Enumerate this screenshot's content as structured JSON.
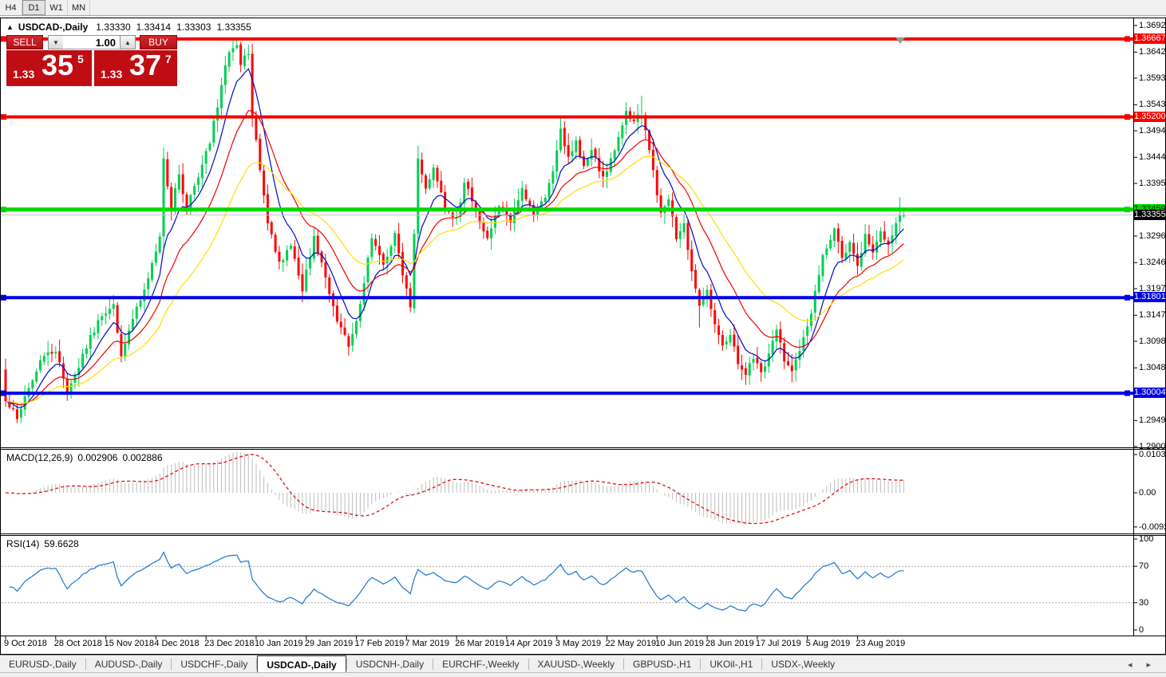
{
  "toolbar": {
    "timeframes": [
      {
        "label": "H4",
        "active": false
      },
      {
        "label": "D1",
        "active": true
      },
      {
        "label": "W1",
        "active": false
      },
      {
        "label": "MN",
        "active": false
      }
    ]
  },
  "chart": {
    "collapse_marker": "▲",
    "title": "USDCAD-,Daily",
    "ohlc": {
      "open": "1.33330",
      "high": "1.33414",
      "low": "1.33303",
      "close": "1.33355"
    },
    "trade_panel": {
      "sell_label": "SELL",
      "buy_label": "BUY",
      "volume": "1.00",
      "down_arrow": "▼",
      "up_arrow": "▲",
      "sell_price": {
        "prefix": "1.33",
        "big": "35",
        "sup": "5"
      },
      "buy_price": {
        "prefix": "1.33",
        "big": "37",
        "sup": "7"
      }
    }
  },
  "macd_panel": {
    "label": "MACD(12,26,9)",
    "value_main": "0.002906",
    "value_signal": "0.002886",
    "axis": [
      {
        "text": "0.010311",
        "value": 0.010311
      },
      {
        "text": "0.00",
        "value": 0
      },
      {
        "text": "-0.009203",
        "value": -0.009203
      }
    ]
  },
  "rsi_panel": {
    "label": "RSI(14)",
    "value": "59.6628",
    "axis": [
      {
        "text": "100",
        "value": 100
      },
      {
        "text": "70",
        "value": 70
      },
      {
        "text": "30",
        "value": 30
      },
      {
        "text": "0",
        "value": 0
      }
    ]
  },
  "price_axis": {
    "ticks": [
      {
        "text": "1.36920",
        "value": 1.3692
      },
      {
        "text": "1.36420",
        "value": 1.3642
      },
      {
        "text": "1.35930",
        "value": 1.3593
      },
      {
        "text": "1.35430",
        "value": 1.3543
      },
      {
        "text": "1.34940",
        "value": 1.3494
      },
      {
        "text": "1.34440",
        "value": 1.3444
      },
      {
        "text": "1.33950",
        "value": 1.3395
      },
      {
        "text": "1.32960",
        "value": 1.3296
      },
      {
        "text": "1.32460",
        "value": 1.3246
      },
      {
        "text": "1.31970",
        "value": 1.3197
      },
      {
        "text": "1.31470",
        "value": 1.3147
      },
      {
        "text": "1.30980",
        "value": 1.3098
      },
      {
        "text": "1.30480",
        "value": 1.3048
      },
      {
        "text": "1.29490",
        "value": 1.2949
      },
      {
        "text": "1.29000",
        "value": 1.29
      }
    ],
    "badges": [
      {
        "text": "1.36667",
        "value": 1.36667,
        "bg": "#ff0000",
        "fg": "#ffffff"
      },
      {
        "text": "1.35200",
        "value": 1.352,
        "bg": "#ff0000",
        "fg": "#ffffff"
      },
      {
        "text": "1.33459",
        "value": 1.33459,
        "bg": "#00d600",
        "fg": "#102800"
      },
      {
        "text": "1.33355",
        "value": 1.33355,
        "bg": "#000000",
        "fg": "#ffffff"
      },
      {
        "text": "1.31801",
        "value": 1.31801,
        "bg": "#0000e6",
        "fg": "#ffffff"
      },
      {
        "text": "1.30004",
        "value": 1.30004,
        "bg": "#0000e6",
        "fg": "#ffffff"
      }
    ]
  },
  "date_axis": {
    "labels": [
      "9 Oct 2018",
      "28 Oct 2018",
      "15 Nov 2018",
      "4 Dec 2018",
      "23 Dec 2018",
      "10 Jan 2019",
      "29 Jan 2019",
      "17 Feb 2019",
      "7 Mar 2019",
      "26 Mar 2019",
      "14 Apr 2019",
      "3 May 2019",
      "22 May 2019",
      "10 Jun 2019",
      "28 Jun 2019",
      "17 Jul 2019",
      "5 Aug 2019",
      "23 Aug 2019"
    ]
  },
  "tabs": {
    "items": [
      {
        "label": "EURUSD-,Daily",
        "active": false
      },
      {
        "label": "AUDUSD-,Daily",
        "active": false
      },
      {
        "label": "USDCHF-,Daily",
        "active": false
      },
      {
        "label": "USDCAD-,Daily",
        "active": true
      },
      {
        "label": "USDCNH-,Daily",
        "active": false
      },
      {
        "label": "EURCHF-,Weekly",
        "active": false
      },
      {
        "label": "XAUUSD-,Weekly",
        "active": false
      },
      {
        "label": "GBPUSD-,H1",
        "active": false
      },
      {
        "label": "UKOil-,H1",
        "active": false
      },
      {
        "label": "USDX-,Weekly",
        "active": false
      }
    ],
    "scroll_left": "◂",
    "scroll_right": "▸"
  },
  "chart_data": {
    "type": "candlestick",
    "symbol": "USDCAD",
    "timeframe": "Daily",
    "last_candle": {
      "open": 1.3333,
      "high": 1.33414,
      "low": 1.33303,
      "close": 1.33355
    },
    "price_axis_top": 1.3692,
    "price_axis_bottom": 1.29,
    "levels": [
      {
        "price": 1.36667,
        "color": "#f40000",
        "width": 4,
        "current": false
      },
      {
        "price": 1.352,
        "color": "#f40000",
        "width": 4,
        "current": false
      },
      {
        "price": 1.33459,
        "color": "#00d800",
        "width": 5,
        "current": false
      },
      {
        "price": 1.33355,
        "color": "#c4c4c4",
        "width": 1,
        "current": true
      },
      {
        "price": 1.31801,
        "color": "#0000e6",
        "width": 4,
        "current": false
      },
      {
        "price": 1.30004,
        "color": "#0000e6",
        "width": 4,
        "current": false
      }
    ],
    "candles": {
      "count": 234,
      "up_color": "#00cf52",
      "down_color": "#fd0505",
      "anchors": [
        [
          0,
          1.2985
        ],
        [
          3,
          1.2952
        ],
        [
          6,
          1.301
        ],
        [
          9,
          1.3062
        ],
        [
          13,
          1.3078
        ],
        [
          16,
          1.2998
        ],
        [
          19,
          1.3048
        ],
        [
          22,
          1.311
        ],
        [
          25,
          1.3145
        ],
        [
          28,
          1.3168
        ],
        [
          30,
          1.307
        ],
        [
          32,
          1.3118
        ],
        [
          35,
          1.3175
        ],
        [
          38,
          1.3245
        ],
        [
          40,
          1.3295
        ],
        [
          41,
          1.3442
        ],
        [
          43,
          1.3345
        ],
        [
          45,
          1.3412
        ],
        [
          47,
          1.3342
        ],
        [
          49,
          1.339
        ],
        [
          51,
          1.343
        ],
        [
          53,
          1.347
        ],
        [
          56,
          1.358
        ],
        [
          58,
          1.3642
        ],
        [
          60,
          1.3655
        ],
        [
          61,
          1.3618
        ],
        [
          63,
          1.3638
        ],
        [
          64,
          1.352
        ],
        [
          66,
          1.342
        ],
        [
          68,
          1.332
        ],
        [
          71,
          1.3248
        ],
        [
          74,
          1.3278
        ],
        [
          77,
          1.3192
        ],
        [
          80,
          1.3296
        ],
        [
          83,
          1.3218
        ],
        [
          86,
          1.3135
        ],
        [
          89,
          1.3088
        ],
        [
          92,
          1.3168
        ],
        [
          95,
          1.3292
        ],
        [
          98,
          1.3242
        ],
        [
          101,
          1.3302
        ],
        [
          103,
          1.3222
        ],
        [
          105,
          1.3162
        ],
        [
          106,
          1.33
        ],
        [
          107,
          1.3442
        ],
        [
          109,
          1.3385
        ],
        [
          111,
          1.3425
        ],
        [
          114,
          1.3348
        ],
        [
          117,
          1.3332
        ],
        [
          119,
          1.3396
        ],
        [
          122,
          1.3342
        ],
        [
          125,
          1.3292
        ],
        [
          128,
          1.3352
        ],
        [
          131,
          1.3322
        ],
        [
          134,
          1.3386
        ],
        [
          137,
          1.3336
        ],
        [
          140,
          1.3368
        ],
        [
          142,
          1.3418
        ],
        [
          144,
          1.3498
        ],
        [
          146,
          1.3445
        ],
        [
          148,
          1.3476
        ],
        [
          150,
          1.3428
        ],
        [
          152,
          1.3458
        ],
        [
          155,
          1.3408
        ],
        [
          157,
          1.3442
        ],
        [
          159,
          1.3482
        ],
        [
          161,
          1.3532
        ],
        [
          163,
          1.3512
        ],
        [
          165,
          1.3522
        ],
        [
          166,
          1.3495
        ],
        [
          168,
          1.342
        ],
        [
          170,
          1.334
        ],
        [
          172,
          1.3365
        ],
        [
          174,
          1.329
        ],
        [
          176,
          1.332
        ],
        [
          178,
          1.323
        ],
        [
          180,
          1.3165
        ],
        [
          182,
          1.3195
        ],
        [
          184,
          1.313
        ],
        [
          186,
          1.309
        ],
        [
          188,
          1.311
        ],
        [
          190,
          1.3055
        ],
        [
          192,
          1.3035
        ],
        [
          194,
          1.3065
        ],
        [
          196,
          1.304
        ],
        [
          198,
          1.3075
        ],
        [
          200,
          1.312
        ],
        [
          202,
          1.306
        ],
        [
          204,
          1.3042
        ],
        [
          206,
          1.308
        ],
        [
          209,
          1.315
        ],
        [
          212,
          1.326
        ],
        [
          215,
          1.331
        ],
        [
          217,
          1.3255
        ],
        [
          219,
          1.3285
        ],
        [
          221,
          1.324
        ],
        [
          223,
          1.33
        ],
        [
          225,
          1.3265
        ],
        [
          227,
          1.3305
        ],
        [
          229,
          1.328
        ],
        [
          231,
          1.332
        ],
        [
          232,
          1.3335
        ],
        [
          233,
          1.33355
        ]
      ],
      "special_wicks": {
        "3": {
          "low": 1.2946
        },
        "41": {
          "high": 1.3452
        },
        "59": {
          "high": 1.36635
        },
        "60": {
          "high": 1.366
        },
        "63": {
          "high": 1.3656
        },
        "77": {
          "low": 1.3179
        },
        "89": {
          "low": 1.3071
        },
        "107": {
          "high": 1.3466
        },
        "144": {
          "high": 1.3521
        },
        "161": {
          "high": 1.3548
        },
        "165": {
          "high": 1.356
        },
        "180": {
          "low": 1.3124
        },
        "192": {
          "low": 1.3017
        },
        "204": {
          "low": 1.3021
        },
        "232": {
          "high": 1.3369
        }
      }
    },
    "moving_averages": [
      {
        "period": 8,
        "color": "#0008c8"
      },
      {
        "period": 18,
        "color": "#ee0000"
      },
      {
        "period": 34,
        "color": "#ffdf00"
      }
    ],
    "macd": {
      "fast": 12,
      "slow": 26,
      "signal_period": 9,
      "histogram_color": "#bdbdbd",
      "signal_color": "#e00000",
      "axis_max": 0.010311,
      "axis_min": -0.009203
    },
    "rsi": {
      "period": 14,
      "color": "#1b76d2",
      "levels": [
        70,
        30
      ]
    }
  }
}
